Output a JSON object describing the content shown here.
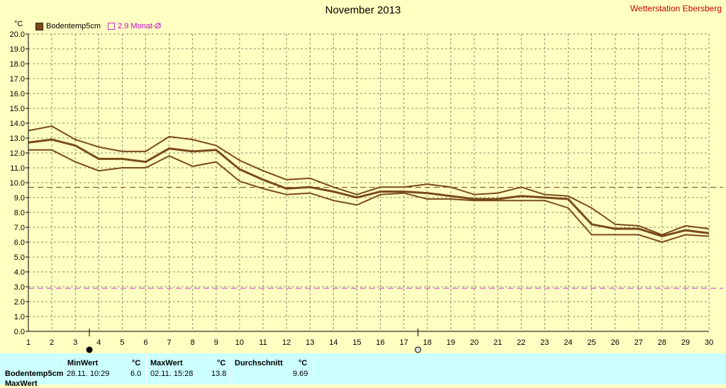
{
  "header": {
    "title": "November 2013",
    "station": "Wetterstation Ebersberg",
    "unit": "°C"
  },
  "legend": [
    {
      "label": "Bodentemp5cm",
      "color": "#7a4a1a"
    },
    {
      "label": "2.9 Monat-Ø",
      "color": "#cc33cc"
    }
  ],
  "chart_data": {
    "type": "line",
    "x": [
      1,
      2,
      3,
      4,
      5,
      6,
      7,
      8,
      9,
      10,
      11,
      12,
      13,
      14,
      15,
      16,
      17,
      18,
      19,
      20,
      21,
      22,
      23,
      24,
      25,
      26,
      27,
      28,
      29,
      30
    ],
    "xlim": [
      1,
      30
    ],
    "ylim": [
      0,
      20
    ],
    "yticks": [
      "0.0",
      "1.0",
      "2.0",
      "3.0",
      "4.0",
      "5.0",
      "6.0",
      "7.0",
      "8.0",
      "9.0",
      "10.0",
      "11.0",
      "12.0",
      "13.0",
      "14.0",
      "15.0",
      "16.0",
      "17.0",
      "18.0",
      "19.0",
      "20.0"
    ],
    "xticks": [
      "1",
      "2",
      "3",
      "4",
      "5",
      "6",
      "7",
      "8",
      "9",
      "10",
      "11",
      "12",
      "13",
      "14",
      "15",
      "16",
      "17",
      "18",
      "19",
      "20",
      "21",
      "22",
      "23",
      "24",
      "25",
      "26",
      "27",
      "28",
      "29",
      "30"
    ],
    "grid": true,
    "series": [
      {
        "role": "max",
        "values": [
          13.5,
          13.8,
          12.9,
          12.4,
          12.1,
          12.1,
          13.1,
          12.9,
          12.5,
          11.5,
          10.8,
          10.2,
          10.3,
          9.7,
          9.2,
          9.7,
          9.7,
          9.9,
          9.7,
          9.2,
          9.3,
          9.7,
          9.2,
          9.1,
          8.3,
          7.2,
          7.1,
          6.5,
          7.1,
          6.9
        ]
      },
      {
        "role": "mean",
        "values": [
          12.7,
          12.9,
          12.5,
          11.6,
          11.6,
          11.4,
          12.3,
          12.1,
          12.2,
          10.9,
          10.2,
          9.6,
          9.7,
          9.4,
          9.0,
          9.4,
          9.4,
          9.3,
          9.1,
          8.9,
          8.9,
          9.1,
          9.0,
          8.9,
          7.2,
          6.9,
          6.9,
          6.4,
          6.8,
          6.6
        ]
      },
      {
        "role": "min",
        "values": [
          12.2,
          12.2,
          11.4,
          10.8,
          11.0,
          11.0,
          11.8,
          11.1,
          11.4,
          10.1,
          9.6,
          9.2,
          9.3,
          8.8,
          8.5,
          9.2,
          9.3,
          8.9,
          8.9,
          8.8,
          8.8,
          8.8,
          8.8,
          8.3,
          6.5,
          6.5,
          6.5,
          6.0,
          6.5,
          6.4
        ]
      }
    ],
    "reference_lines": [
      {
        "value": 9.69,
        "color": "#7a4a1a"
      },
      {
        "value": 2.9,
        "color": "#cc33cc"
      }
    ],
    "markers": [
      {
        "x": 3.6,
        "kind": "min"
      },
      {
        "x": 17.6,
        "kind": "max"
      }
    ]
  },
  "stats": {
    "row_label": "Bodentemp5cm",
    "row_label2": "MaxWert",
    "min_header": "MinWert",
    "min_unit": "°C",
    "min_time": "28.11. 10:29",
    "min_value": "6.0",
    "max_header": "MaxWert",
    "max_unit": "°C",
    "max_time": "02.11. 15:28",
    "max_value": "13.8",
    "avg_header": "Durchschnitt",
    "avg_unit": "°C",
    "avg_value": "9.69"
  }
}
